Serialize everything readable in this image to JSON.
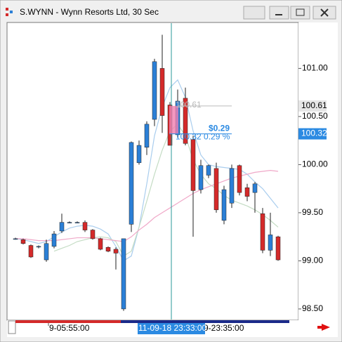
{
  "chart_data": {
    "type": "candlestick",
    "title": "S.WYNN - Wynn Resorts Ltd, 30 Sec",
    "categories": [
      null,
      null,
      null,
      null,
      "9-05:55:00",
      null,
      null,
      null,
      null,
      null,
      null,
      null,
      null,
      null,
      null,
      null,
      null,
      null,
      null,
      null,
      null,
      null,
      null,
      null,
      "9-23:35:00",
      null,
      null,
      null,
      null,
      null,
      null,
      null,
      null,
      null,
      null
    ],
    "open": [
      99.23,
      99.22,
      99.16,
      99.15,
      99.01,
      99.15,
      99.31,
      99.4,
      99.4,
      99.4,
      99.32,
      99.23,
      99.14,
      99.12,
      98.5,
      99.38,
      100.02,
      100.18,
      100.47,
      101.0,
      100.62,
      100.31,
      100.69,
      100.26,
      99.74,
      99.89,
      99.96,
      99.42,
      99.6,
      99.99,
      99.76,
      99.71,
      99.49,
      99.11,
      99.25
    ],
    "high": [
      99.24,
      99.23,
      99.17,
      99.16,
      99.22,
      99.31,
      99.49,
      99.41,
      99.41,
      99.42,
      99.33,
      99.24,
      99.15,
      99.14,
      99.23,
      100.24,
      100.25,
      100.45,
      101.1,
      101.35,
      100.65,
      100.78,
      100.8,
      100.3,
      100.05,
      100.0,
      100.02,
      99.78,
      100.0,
      100.0,
      99.8,
      99.82,
      99.55,
      99.5,
      99.26
    ],
    "low": [
      99.22,
      99.17,
      99.03,
      99.13,
      98.99,
      99.13,
      99.29,
      99.39,
      99.39,
      99.3,
      99.22,
      99.11,
      99.09,
      98.91,
      98.48,
      99.3,
      100.0,
      100.1,
      100.4,
      100.33,
      100.22,
      100.28,
      100.2,
      99.25,
      99.7,
      99.86,
      99.5,
      99.38,
      99.55,
      99.68,
      99.62,
      99.5,
      99.08,
      99.05,
      99.0
    ],
    "close": [
      99.23,
      99.18,
      99.04,
      99.15,
      99.18,
      99.28,
      99.4,
      99.4,
      99.4,
      99.32,
      99.23,
      99.12,
      99.1,
      99.08,
      99.23,
      100.23,
      100.2,
      100.42,
      101.07,
      100.51,
      100.2,
      100.66,
      100.22,
      99.73,
      99.99,
      99.99,
      99.53,
      99.74,
      99.96,
      99.71,
      99.67,
      99.8,
      99.11,
      99.27,
      99.01
    ],
    "up_color": "#2b7fd6",
    "down_color": "#d42a2a",
    "overlays": [
      {
        "color": "#a9cdee",
        "values": [
          99.23,
          99.22,
          99.2,
          99.18,
          99.2,
          99.25,
          99.3,
          99.34,
          99.36,
          99.37,
          99.36,
          99.33,
          99.28,
          99.15,
          99.0,
          99.05,
          99.35,
          99.8,
          100.3,
          100.6,
          100.8,
          100.88,
          100.7,
          100.35,
          100.1,
          100.0,
          99.98,
          99.97,
          99.96,
          99.95,
          99.9,
          99.82,
          99.75,
          99.65,
          99.55
        ]
      },
      {
        "color": "#c4dcc4",
        "values": [
          null,
          null,
          null,
          null,
          null,
          99.1,
          99.13,
          99.16,
          99.2,
          99.22,
          99.24,
          99.25,
          99.24,
          99.2,
          99.05,
          99.1,
          99.35,
          99.62,
          99.9,
          100.15,
          100.35,
          100.42,
          100.3,
          100.05,
          99.9,
          99.8,
          99.75,
          99.68,
          99.63,
          99.6,
          99.57,
          99.53,
          99.48,
          99.42,
          99.35
        ]
      },
      {
        "color": "#f0a8c8",
        "values": [
          99.23,
          99.23,
          99.22,
          99.21,
          99.21,
          99.21,
          99.22,
          99.23,
          99.24,
          99.24,
          99.24,
          99.23,
          99.22,
          99.21,
          99.2,
          99.25,
          99.32,
          99.38,
          99.45,
          99.5,
          99.55,
          99.6,
          99.65,
          99.7,
          99.74,
          99.77,
          99.8,
          99.83,
          99.86,
          99.88,
          99.9,
          99.92,
          99.93,
          99.94,
          99.93
        ]
      }
    ],
    "ylim": [
      98.39,
      101.47
    ],
    "yticks": [
      {
        "value": 98.5,
        "label": "98.50"
      },
      {
        "value": 99.0,
        "label": "99.00"
      },
      {
        "value": 99.5,
        "label": "99.50"
      },
      {
        "value": 100.0,
        "label": "100.00"
      },
      {
        "value": 100.5,
        "label": "100.50"
      },
      {
        "value": 101.0,
        "label": "101.00"
      }
    ],
    "price_markers": [
      {
        "value": 100.61,
        "label": "100.61",
        "color": "#e6e6e6"
      },
      {
        "value": 100.32,
        "label": "100.32",
        "color": "#2b8ae2"
      }
    ],
    "cursor_time": "11-09-18 23:33:00",
    "change": "$0.29",
    "change_detail": "100.32 0.29 %"
  }
}
